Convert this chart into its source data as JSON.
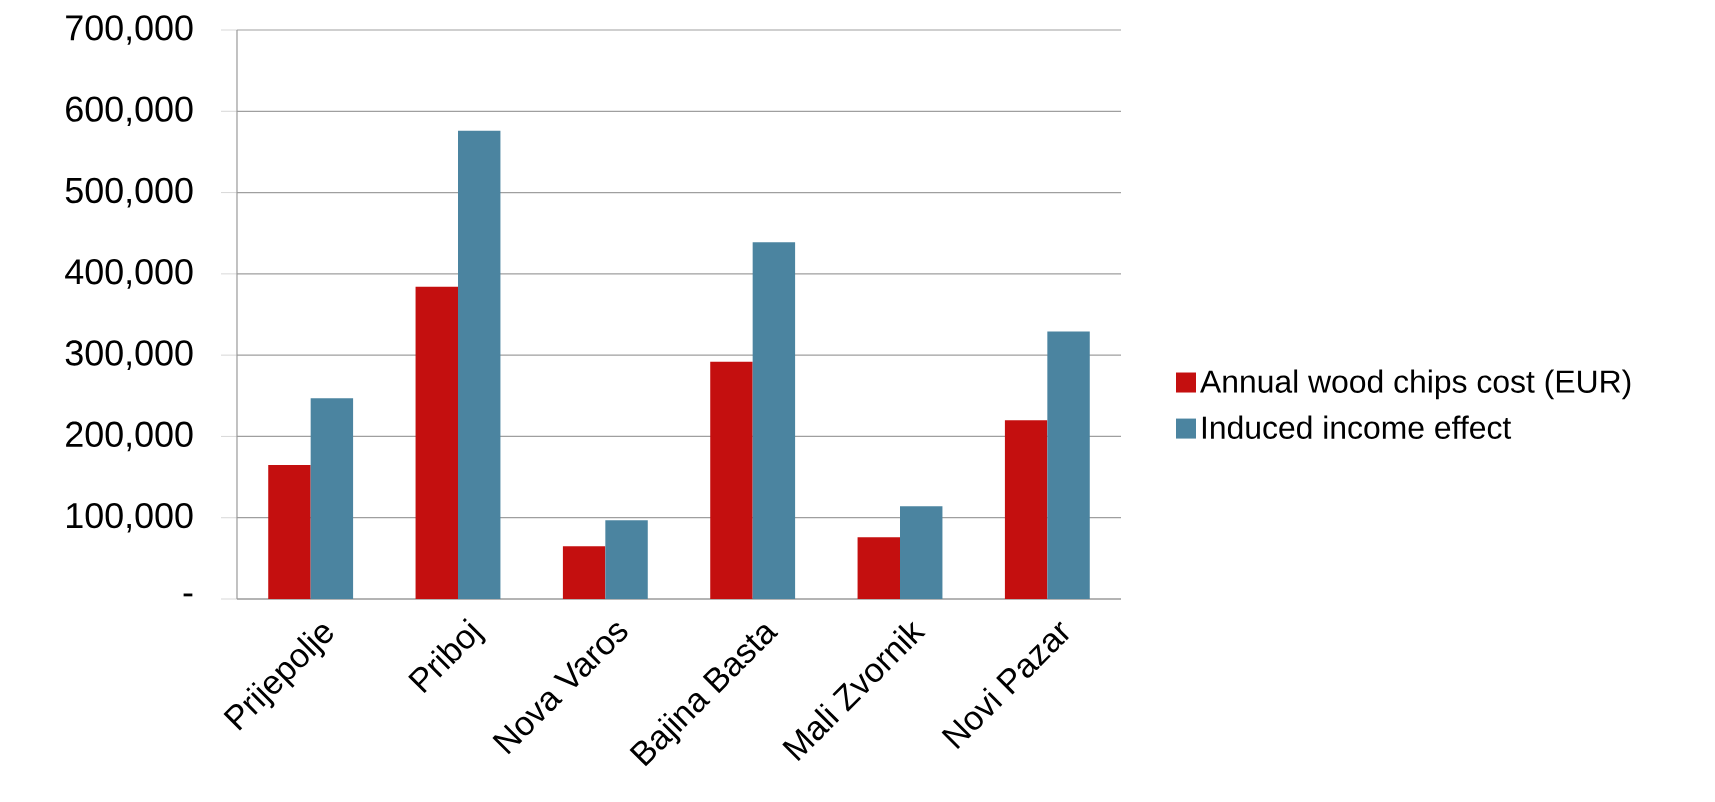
{
  "chart_data": {
    "type": "bar",
    "categories": [
      "Prijepolje",
      "Priboj",
      "Nova Varos",
      "Bajina Basta",
      "Mali Zvornik",
      "Novi Pazar"
    ],
    "series": [
      {
        "name": "Annual wood chips cost (EUR)",
        "color": "#c40f0f",
        "values": [
          165000,
          384000,
          65000,
          292000,
          76000,
          220000
        ]
      },
      {
        "name": "Induced income effect",
        "color": "#4b84a0",
        "values": [
          247000,
          576000,
          97000,
          439000,
          114000,
          329000
        ]
      }
    ],
    "ylim": [
      0,
      700000
    ],
    "yticks": [
      {
        "value": 0,
        "label": "-"
      },
      {
        "value": 100000,
        "label": "100,000"
      },
      {
        "value": 200000,
        "label": "200,000"
      },
      {
        "value": 300000,
        "label": "300,000"
      },
      {
        "value": 400000,
        "label": "400,000"
      },
      {
        "value": 500000,
        "label": "500,000"
      },
      {
        "value": 600000,
        "label": "600,000"
      },
      {
        "value": 700000,
        "label": "700,000"
      }
    ],
    "grid": "y",
    "legend": "right"
  }
}
